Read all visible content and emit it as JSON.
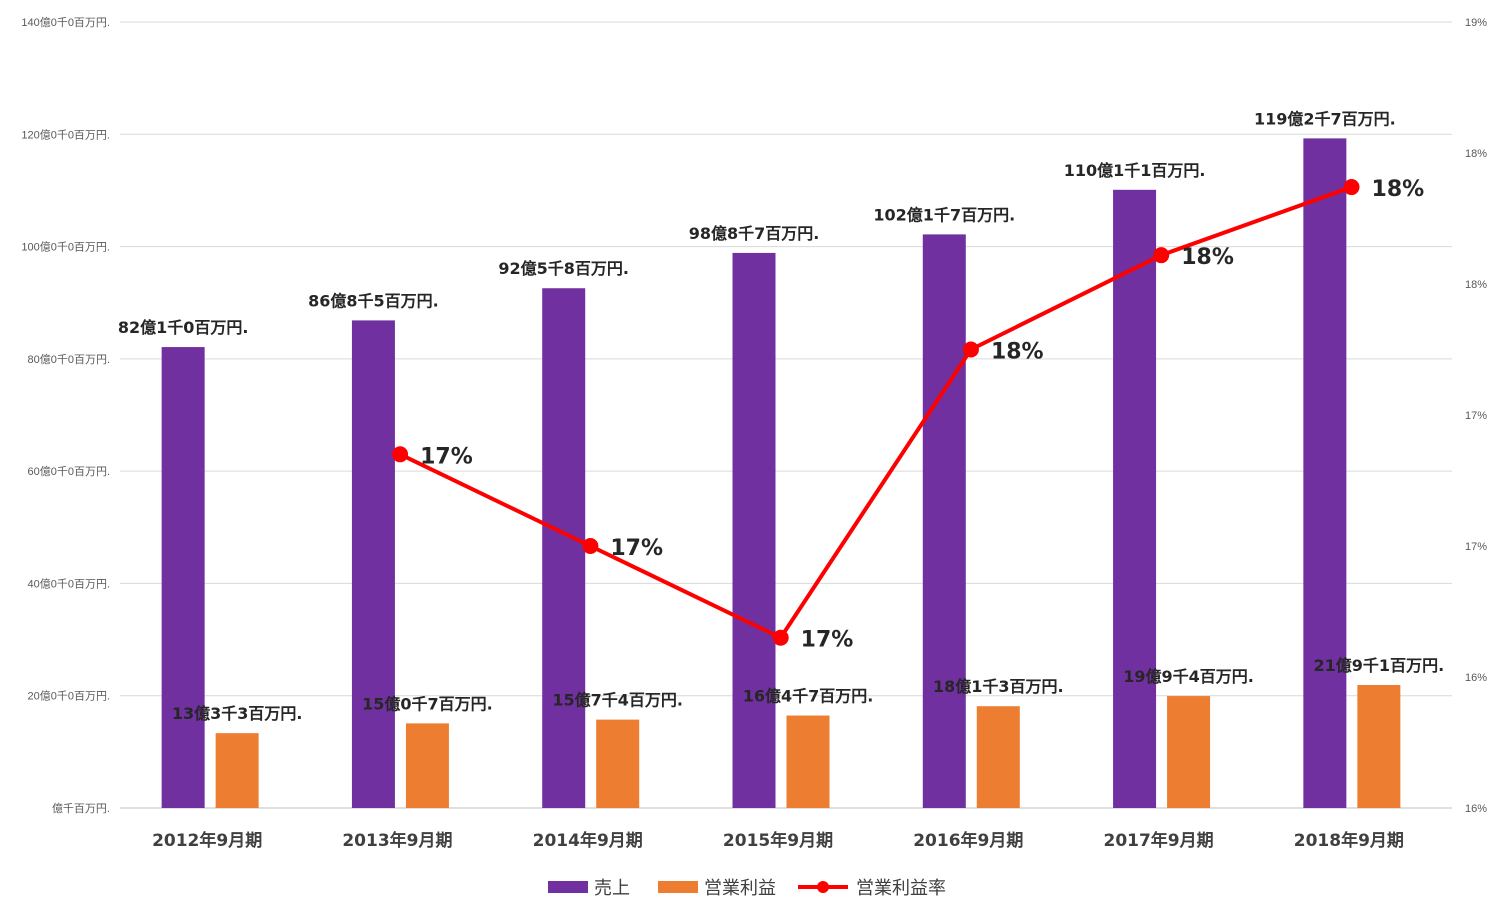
{
  "colors": {
    "sales": "#7030A0",
    "profit": "#ED7D31",
    "rate": "#FF0000",
    "grid": "#D9D9D9",
    "axis": "#BFBFBF"
  },
  "chart_data": {
    "type": "bar",
    "categories": [
      "2012年9月期",
      "2013年9月期",
      "2014年9月期",
      "2015年9月期",
      "2016年9月期",
      "2017年9月期",
      "2018年9月期"
    ],
    "series": [
      {
        "name": "売上",
        "kind": "bar",
        "axis": "left",
        "values": [
          8210,
          8685,
          9258,
          9887,
          10217,
          11011,
          11927
        ],
        "labels": [
          "82億1千0百万円.",
          "86億8千5百万円.",
          "92億5千8百万円.",
          "98億8千7百万円.",
          "102億1千7百万円.",
          "110億1千1百万円.",
          "119億2千7百万円."
        ]
      },
      {
        "name": "営業利益",
        "kind": "bar",
        "axis": "left",
        "values": [
          1333,
          1507,
          1574,
          1647,
          1813,
          1994,
          2191
        ],
        "labels": [
          "13億3千3百万円.",
          "15億0千7百万円.",
          "15億7千4百万円.",
          "16億4千7百万円.",
          "18億1千3百万円.",
          "19億9千4百万円.",
          "21億9千1百万円."
        ]
      },
      {
        "name": "営業利益率",
        "kind": "line",
        "axis": "right",
        "values": [
          null,
          0.1735,
          0.17,
          0.1665,
          0.1775,
          0.1811,
          0.1837
        ],
        "labels": [
          "",
          "17%",
          "17%",
          "17%",
          "18%",
          "18%",
          "18%"
        ]
      }
    ],
    "left_axis": {
      "ylim": [
        0,
        14000
      ],
      "ticks": [
        0,
        2000,
        4000,
        6000,
        8000,
        10000,
        12000,
        14000
      ],
      "tick_labels": [
        "億千百万円.",
        "20億0千0百万円.",
        "40億0千0百万円.",
        "60億0千0百万円.",
        "80億0千0百万円.",
        "100億0千0百万円.",
        "120億0千0百万円.",
        "140億0千0百万円."
      ]
    },
    "right_axis": {
      "ylim": [
        0.16,
        0.19
      ],
      "ticks": [
        0.16,
        0.165,
        0.17,
        0.175,
        0.18,
        0.185,
        0.19
      ],
      "tick_labels": [
        "16%",
        "16%",
        "17%",
        "17%",
        "18%",
        "18%",
        "19%"
      ]
    },
    "grid": true,
    "legend_position": "bottom-center",
    "legend": [
      "売上",
      "営業利益",
      "営業利益率"
    ]
  }
}
